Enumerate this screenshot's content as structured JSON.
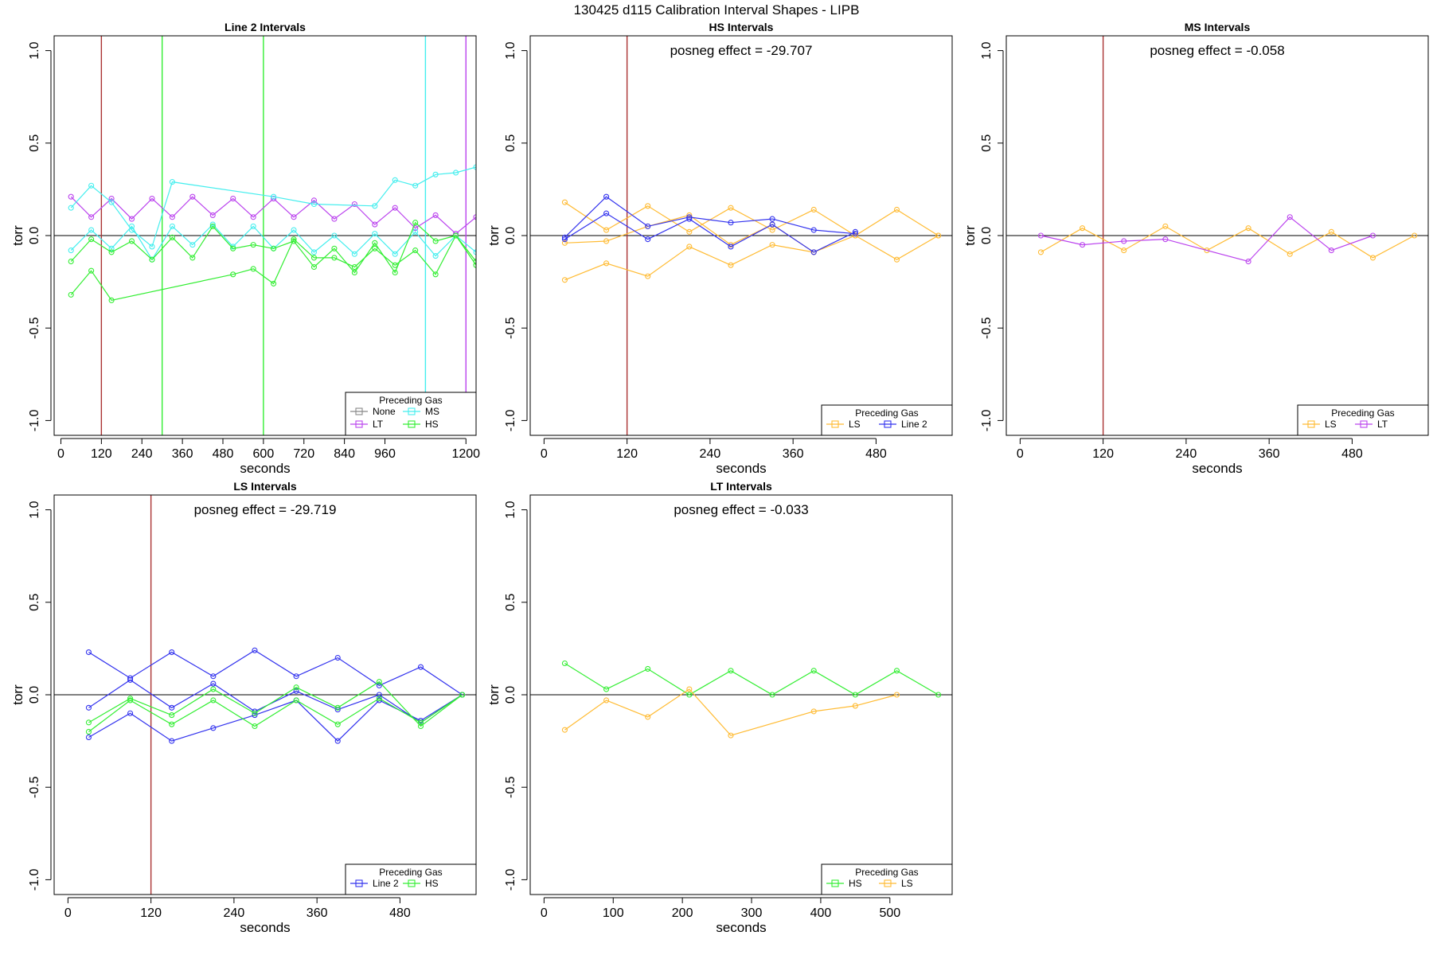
{
  "figure": {
    "title": "130425   d115   Calibration Interval Shapes - LIPB"
  },
  "colors": {
    "Line 2": "#3333ee",
    "LS": "#ffbb33",
    "MS": "#44eeee",
    "HS": "#33ee33",
    "LT": "#bb44ee",
    "None": "#888888",
    "posneg_line": "#aa3333"
  },
  "chart_data": [
    {
      "type": "line",
      "title": "Line 2 Intervals",
      "xlabel": "seconds",
      "ylabel": "torr",
      "xlim": [
        -20,
        1230
      ],
      "ylim": [
        -1.08,
        1.08
      ],
      "xticks": [
        0,
        120,
        240,
        360,
        480,
        600,
        720,
        840,
        960,
        1200
      ],
      "yticks": [
        -1.0,
        -0.5,
        0.0,
        0.5,
        1.0
      ],
      "legend": {
        "title": "Preceding Gas",
        "position": "bottom-right",
        "entries": [
          "None",
          "MS",
          "LT",
          "HS"
        ]
      },
      "annotation": "",
      "vlines": [
        {
          "x": 120,
          "gas": "posneg_line"
        },
        {
          "x": 300,
          "gas": "HS"
        },
        {
          "x": 600,
          "gas": "HS"
        },
        {
          "x": 1080,
          "gas": "MS"
        },
        {
          "x": 1200,
          "gas": "LT"
        }
      ],
      "series": [
        {
          "gas": "LT",
          "x": [
            30,
            90,
            150,
            210,
            270,
            330,
            390,
            450,
            510,
            570,
            630,
            690,
            750,
            810,
            870,
            930,
            990,
            1050,
            1110,
            1170,
            1230
          ],
          "y": [
            0.21,
            0.1,
            0.2,
            0.09,
            0.2,
            0.1,
            0.21,
            0.11,
            0.2,
            0.1,
            0.2,
            0.1,
            0.19,
            0.09,
            0.17,
            0.06,
            0.15,
            0.04,
            0.11,
            0.01,
            0.1
          ]
        },
        {
          "gas": "MS",
          "x": [
            30,
            90,
            150,
            210,
            270,
            330,
            630,
            750,
            930,
            990,
            1050,
            1110,
            1170,
            1230
          ],
          "y": [
            0.15,
            0.27,
            0.18,
            0.03,
            -0.06,
            0.29,
            0.21,
            0.17,
            0.16,
            0.3,
            0.27,
            0.33,
            0.34,
            0.37
          ]
        },
        {
          "gas": "MS",
          "x": [
            30,
            90,
            150,
            210,
            270,
            330,
            390,
            450,
            510,
            570,
            630,
            690,
            750,
            810,
            870,
            930,
            990,
            1050,
            1110,
            1170,
            1230
          ],
          "y": [
            -0.08,
            0.03,
            -0.07,
            0.05,
            -0.13,
            0.05,
            -0.05,
            0.06,
            -0.06,
            0.05,
            -0.07,
            0.03,
            -0.09,
            0.0,
            -0.1,
            0.01,
            -0.1,
            0.02,
            -0.11,
            0.0,
            -0.09
          ]
        },
        {
          "gas": "HS",
          "x": [
            30,
            90,
            150,
            210,
            270,
            330,
            390,
            450,
            510,
            570,
            630,
            690,
            750,
            810,
            870,
            930,
            990,
            1050,
            1110,
            1170,
            1230
          ],
          "y": [
            -0.14,
            -0.02,
            -0.09,
            -0.03,
            -0.13,
            -0.01,
            -0.12,
            0.05,
            -0.07,
            -0.05,
            -0.07,
            -0.03,
            -0.17,
            -0.07,
            -0.2,
            -0.04,
            -0.2,
            0.07,
            -0.03,
            0.0,
            -0.16
          ]
        },
        {
          "gas": "HS",
          "x": [
            30,
            90,
            150,
            510,
            570,
            630,
            690,
            750,
            810,
            870,
            930,
            990,
            1050,
            1110,
            1170,
            1230
          ],
          "y": [
            -0.32,
            -0.19,
            -0.35,
            -0.21,
            -0.18,
            -0.26,
            -0.02,
            -0.12,
            -0.12,
            -0.17,
            -0.07,
            -0.16,
            -0.08,
            -0.21,
            0.0,
            -0.14
          ]
        }
      ]
    },
    {
      "type": "line",
      "title": "HS Intervals",
      "xlabel": "seconds",
      "ylabel": "torr",
      "xlim": [
        -20,
        590
      ],
      "ylim": [
        -1.08,
        1.08
      ],
      "xticks": [
        0,
        120,
        240,
        360,
        480
      ],
      "yticks": [
        -1.0,
        -0.5,
        0.0,
        0.5,
        1.0
      ],
      "legend": {
        "title": "Preceding Gas",
        "position": "bottom-right",
        "entries": [
          "LS",
          "Line 2"
        ]
      },
      "annotation": "posneg effect = -29.707",
      "vlines": [
        {
          "x": 120,
          "gas": "posneg_line"
        }
      ],
      "series": [
        {
          "gas": "LS",
          "x": [
            30,
            90,
            150,
            210,
            270,
            330,
            390,
            450,
            510,
            570
          ],
          "y": [
            0.18,
            0.03,
            0.16,
            0.02,
            0.15,
            0.03,
            0.14,
            0.0,
            0.14,
            0.0
          ]
        },
        {
          "gas": "LS",
          "x": [
            30,
            90,
            150,
            210,
            270,
            330,
            390,
            450,
            510,
            570
          ],
          "y": [
            -0.24,
            -0.15,
            -0.22,
            -0.06,
            -0.16,
            -0.05,
            -0.09,
            0.0,
            -0.13,
            0.0
          ]
        },
        {
          "gas": "LS",
          "x": [
            30,
            90,
            150,
            210,
            270,
            330,
            390
          ],
          "y": [
            -0.04,
            -0.03,
            0.05,
            0.11,
            -0.05,
            0.06,
            -0.09
          ]
        },
        {
          "gas": "Line 2",
          "x": [
            30,
            90,
            150,
            210,
            270,
            330,
            390,
            450
          ],
          "y": [
            -0.01,
            0.21,
            0.05,
            0.1,
            0.07,
            0.09,
            0.03,
            0.01
          ]
        },
        {
          "gas": "Line 2",
          "x": [
            30,
            90,
            150,
            210,
            270,
            330,
            390,
            450
          ],
          "y": [
            -0.02,
            0.12,
            -0.02,
            0.09,
            -0.06,
            0.06,
            -0.09,
            0.02
          ]
        }
      ]
    },
    {
      "type": "line",
      "title": "MS Intervals",
      "xlabel": "seconds",
      "ylabel": "torr",
      "xlim": [
        -20,
        590
      ],
      "ylim": [
        -1.08,
        1.08
      ],
      "xticks": [
        0,
        120,
        240,
        360,
        480
      ],
      "yticks": [
        -1.0,
        -0.5,
        0.0,
        0.5,
        1.0
      ],
      "legend": {
        "title": "Preceding Gas",
        "position": "bottom-right",
        "entries": [
          "LS",
          "LT"
        ]
      },
      "annotation": "posneg effect = -0.058",
      "vlines": [
        {
          "x": 120,
          "gas": "posneg_line"
        }
      ],
      "series": [
        {
          "gas": "LS",
          "x": [
            30,
            90,
            150,
            210,
            270,
            330,
            390,
            450,
            510,
            570
          ],
          "y": [
            -0.09,
            0.04,
            -0.08,
            0.05,
            -0.08,
            0.04,
            -0.1,
            0.02,
            -0.12,
            0.0
          ]
        },
        {
          "gas": "LT",
          "x": [
            30,
            90,
            150,
            210,
            330,
            390,
            450,
            510
          ],
          "y": [
            0.0,
            -0.05,
            -0.03,
            -0.02,
            -0.14,
            0.1,
            -0.08,
            0.0
          ]
        }
      ]
    },
    {
      "type": "line",
      "title": "LS Intervals",
      "xlabel": "seconds",
      "ylabel": "torr",
      "xlim": [
        -20,
        590
      ],
      "ylim": [
        -1.08,
        1.08
      ],
      "xticks": [
        0,
        120,
        240,
        360,
        480
      ],
      "yticks": [
        -1.0,
        -0.5,
        0.0,
        0.5,
        1.0
      ],
      "legend": {
        "title": "Preceding Gas",
        "position": "bottom-right",
        "entries": [
          "Line 2",
          "HS"
        ]
      },
      "annotation": "posneg effect = -29.719",
      "vlines": [
        {
          "x": 120,
          "gas": "posneg_line"
        }
      ],
      "series": [
        {
          "gas": "Line 2",
          "x": [
            30,
            90,
            150,
            210,
            270,
            330,
            390,
            450,
            510,
            570
          ],
          "y": [
            0.23,
            0.09,
            0.23,
            0.1,
            0.24,
            0.1,
            0.2,
            0.05,
            0.15,
            0.0
          ]
        },
        {
          "gas": "Line 2",
          "x": [
            30,
            90,
            150,
            210,
            270,
            330,
            390,
            450,
            510,
            570
          ],
          "y": [
            -0.07,
            0.08,
            -0.07,
            0.06,
            -0.09,
            0.02,
            -0.08,
            0.0,
            -0.15,
            0.0
          ]
        },
        {
          "gas": "Line 2",
          "x": [
            30,
            90,
            150,
            210,
            270,
            330,
            390,
            450,
            510,
            570
          ],
          "y": [
            -0.23,
            -0.1,
            -0.25,
            -0.18,
            -0.11,
            -0.03,
            -0.25,
            -0.03,
            -0.14,
            0.0
          ]
        },
        {
          "gas": "HS",
          "x": [
            30,
            90,
            150,
            210,
            270,
            330,
            390,
            450,
            510,
            570
          ],
          "y": [
            -0.15,
            -0.02,
            -0.11,
            0.03,
            -0.1,
            0.04,
            -0.07,
            0.07,
            -0.17,
            0.0
          ]
        },
        {
          "gas": "HS",
          "x": [
            30,
            90,
            150,
            210,
            270,
            330,
            390,
            450,
            510,
            570
          ],
          "y": [
            -0.2,
            -0.03,
            -0.16,
            -0.03,
            -0.17,
            -0.03,
            -0.16,
            -0.02,
            -0.15,
            0.0
          ]
        }
      ]
    },
    {
      "type": "line",
      "title": "LT Intervals",
      "xlabel": "seconds",
      "ylabel": "torr",
      "xlim": [
        -20,
        590
      ],
      "ylim": [
        -1.08,
        1.08
      ],
      "xticks": [
        0,
        100,
        200,
        300,
        400,
        500
      ],
      "yticks": [
        -1.0,
        -0.5,
        0.0,
        0.5,
        1.0
      ],
      "legend": {
        "title": "Preceding Gas",
        "position": "bottom-right",
        "entries": [
          "HS",
          "LS"
        ]
      },
      "annotation": "posneg effect = -0.033",
      "vlines": [],
      "series": [
        {
          "gas": "HS",
          "x": [
            30,
            90,
            150,
            210,
            270,
            330,
            390,
            450,
            510,
            570
          ],
          "y": [
            0.17,
            0.03,
            0.14,
            0.0,
            0.13,
            0.0,
            0.13,
            0.0,
            0.13,
            0.0
          ]
        },
        {
          "gas": "LS",
          "x": [
            30,
            90,
            150,
            210,
            270,
            390,
            450,
            510
          ],
          "y": [
            -0.19,
            -0.03,
            -0.12,
            0.03,
            -0.22,
            -0.09,
            -0.06,
            0.0
          ]
        }
      ]
    }
  ]
}
